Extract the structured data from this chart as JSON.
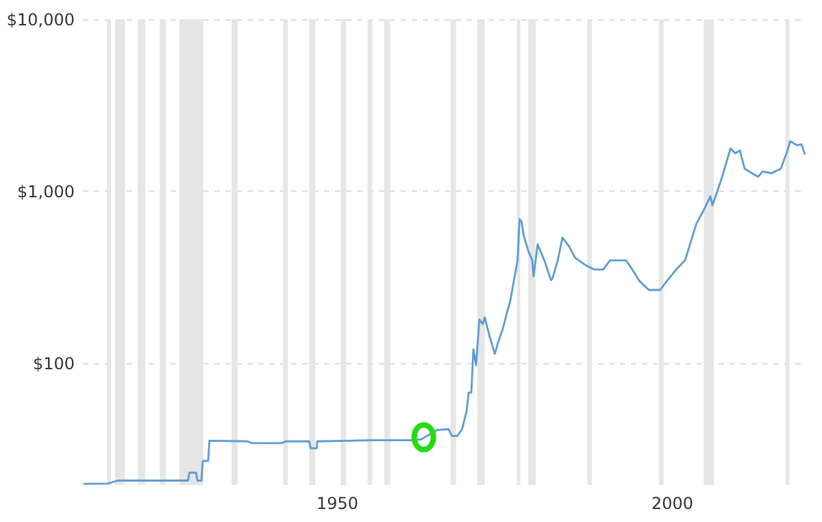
{
  "chart_data": {
    "type": "line",
    "log": "y",
    "grid": "y",
    "xlim": [
      1912,
      2020
    ],
    "xticks": [
      1950,
      2000
    ],
    "ylim": [
      19.5,
      10000
    ],
    "yticks": [
      {
        "value": 100,
        "label": "$100"
      },
      {
        "value": 1000,
        "label": "$1,000"
      },
      {
        "value": 10000,
        "label": "$10,000"
      }
    ],
    "x": [
      1912.2,
      1915.9,
      1917.3,
      1927.8,
      1928.0,
      1929.0,
      1929.2,
      1929.8,
      1930.0,
      1930.8,
      1931.0,
      1936.7,
      1937.3,
      1941.8,
      1942.4,
      1945.9,
      1946.1,
      1947.0,
      1947.1,
      1955.1,
      1961.2,
      1962.6,
      1965.0,
      1966.7,
      1967.2,
      1968.0,
      1968.7,
      1969.4,
      1969.7,
      1970.1,
      1970.4,
      1970.8,
      1971.3,
      1971.8,
      1972.1,
      1972.8,
      1973.6,
      1974.1,
      1974.8,
      1975.5,
      1975.9,
      1976.5,
      1977.0,
      1977.3,
      1977.6,
      1977.9,
      1978.6,
      1979.2,
      1979.4,
      1980.0,
      1981.0,
      1982.0,
      1982.2,
      1983.0,
      1983.7,
      1984.7,
      1985.6,
      1987.1,
      1988.4,
      1989.8,
      1990.8,
      1993.2,
      1993.9,
      1995.2,
      1996.6,
      1998.3,
      1999.3,
      2000.7,
      2002.0,
      2003.7,
      2004.8,
      2005.8,
      2006.1,
      2007.5,
      2008.8,
      2009.5,
      2010.2,
      2010.9,
      2012.9,
      2013.6,
      2014.9,
      2016.3,
      2017.3,
      2017.7,
      2018.7,
      2019.4,
      2019.9
    ],
    "series": [
      {
        "color": "#5b9bd5",
        "values": [
          19.8,
          19.9,
          20.7,
          20.7,
          23.0,
          23.0,
          20.7,
          20.7,
          26.9,
          26.9,
          35.3,
          35,
          34.2,
          34.2,
          35,
          35,
          31.9,
          31.9,
          35,
          35.5,
          35.5,
          35.9,
          40.8,
          41.2,
          37.6,
          37.6,
          41,
          52.6,
          67.2,
          67.2,
          120,
          97,
          179,
          168,
          184,
          144,
          113,
          132,
          158,
          202,
          228,
          309,
          395,
          687,
          666,
          554,
          449,
          395,
          319,
          490,
          395,
          303,
          309,
          395,
          537,
          476,
          409,
          372,
          350,
          350,
          395,
          395,
          361,
          300,
          266,
          266,
          300,
          350,
          395,
          646,
          776,
          933,
          826,
          1192,
          1770,
          1660,
          1720,
          1350,
          1210,
          1300,
          1270,
          1350,
          1720,
          1950,
          1850,
          1870,
          1630
        ]
      }
    ],
    "bands": [
      {
        "axis": "x",
        "from": 1915.7,
        "to": 1916.3,
        "color": "#e6e6e6"
      },
      {
        "axis": "x",
        "from": 1916.9,
        "to": 1918.4,
        "color": "#e6e6e6"
      },
      {
        "axis": "x",
        "from": 1920.3,
        "to": 1921.4,
        "color": "#e6e6e6"
      },
      {
        "axis": "x",
        "from": 1923.6,
        "to": 1924.5,
        "color": "#e6e6e6"
      },
      {
        "axis": "x",
        "from": 1926.5,
        "to": 1930.1,
        "color": "#e6e6e6"
      },
      {
        "axis": "x",
        "from": 1934.3,
        "to": 1935.2,
        "color": "#e6e6e6"
      },
      {
        "axis": "x",
        "from": 1942.0,
        "to": 1942.7,
        "color": "#e6e6e6"
      },
      {
        "axis": "x",
        "from": 1945.9,
        "to": 1946.8,
        "color": "#e6e6e6"
      },
      {
        "axis": "x",
        "from": 1950.6,
        "to": 1951.4,
        "color": "#e6e6e6"
      },
      {
        "axis": "x",
        "from": 1954.6,
        "to": 1955.3,
        "color": "#e6e6e6"
      },
      {
        "axis": "x",
        "from": 1957.1,
        "to": 1958.0,
        "color": "#e6e6e6"
      },
      {
        "axis": "x",
        "from": 1967.0,
        "to": 1967.8,
        "color": "#e6e6e6"
      },
      {
        "axis": "x",
        "from": 1971.0,
        "to": 1972.1,
        "color": "#e6e6e6"
      },
      {
        "axis": "x",
        "from": 1976.9,
        "to": 1977.4,
        "color": "#e6e6e6"
      },
      {
        "axis": "x",
        "from": 1978.6,
        "to": 1979.7,
        "color": "#e6e6e6"
      },
      {
        "axis": "x",
        "from": 1987.4,
        "to": 1988.1,
        "color": "#e6e6e6"
      },
      {
        "axis": "x",
        "from": 1998.1,
        "to": 1998.8,
        "color": "#e6e6e6"
      },
      {
        "axis": "x",
        "from": 2004.8,
        "to": 2006.3,
        "color": "#e6e6e6"
      },
      {
        "axis": "x",
        "from": 2017.0,
        "to": 2017.6,
        "color": "#e6e6e6"
      }
    ]
  }
}
